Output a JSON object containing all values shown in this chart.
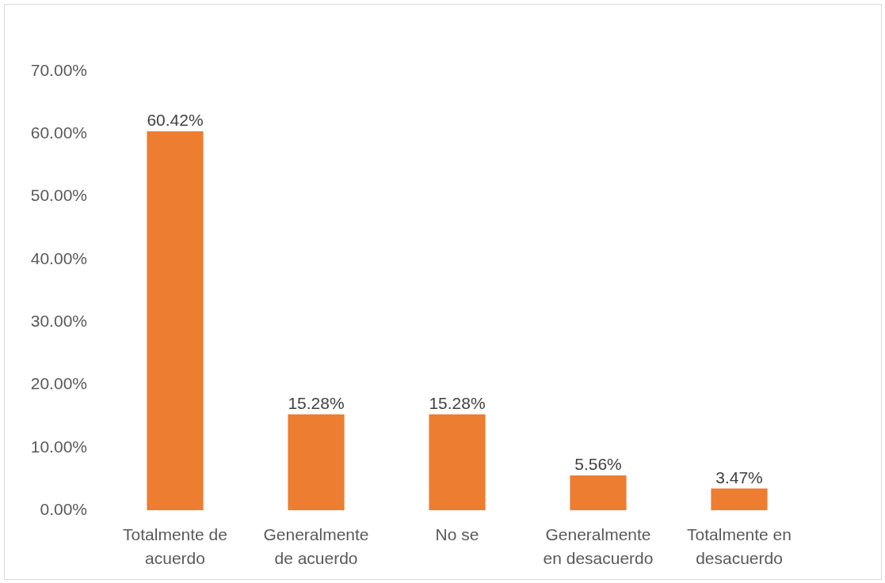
{
  "chart_data": {
    "type": "bar",
    "categories": [
      "Totalmente de acuerdo",
      "Generalmente de acuerdo",
      "No se",
      "Generalmente en desacuerdo",
      "Totalmente en desacuerdo"
    ],
    "values": [
      60.42,
      15.28,
      15.28,
      5.56,
      3.47
    ],
    "value_labels": [
      "60.42%",
      "15.28%",
      "15.28%",
      "5.56%",
      "3.47%"
    ],
    "color": "#ed7d31",
    "ylim": [
      0,
      70
    ],
    "yticks": [
      {
        "value": 0,
        "label": "0.00%"
      },
      {
        "value": 10,
        "label": "10.00%"
      },
      {
        "value": 20,
        "label": "20.00%"
      },
      {
        "value": 30,
        "label": "30.00%"
      },
      {
        "value": 40,
        "label": "40.00%"
      },
      {
        "value": 50,
        "label": "50.00%"
      },
      {
        "value": 60,
        "label": "60.00%"
      },
      {
        "value": 70,
        "label": "70.00%"
      }
    ],
    "grid": false,
    "legend": false
  }
}
